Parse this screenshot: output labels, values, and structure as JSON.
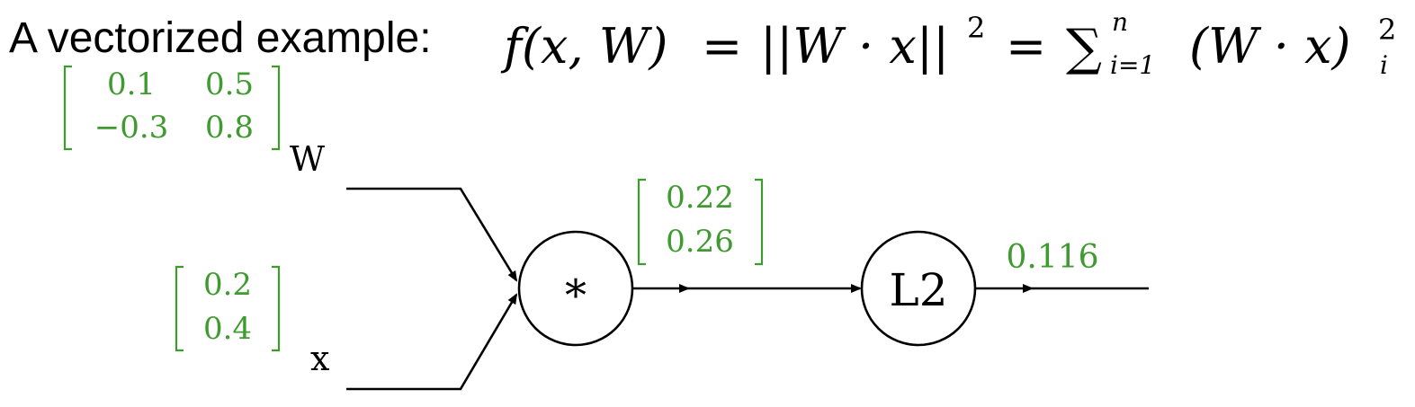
{
  "title": {
    "prefix": "A vectorized example:",
    "formula": {
      "lhs": "f(x, W)",
      "eq1": "=",
      "norm": "||W · x||",
      "norm_exp": "2",
      "eq2": "=",
      "sum_symbol": "∑",
      "sum_upper": "n",
      "sum_lower": "i=1",
      "summand": "(W · x)",
      "summand_sub": "i",
      "summand_exp": "2"
    }
  },
  "diagram": {
    "inputs": {
      "W": {
        "label": "W",
        "matrix": [
          [
            "0.1",
            "0.5"
          ],
          [
            "−0.3",
            "0.8"
          ]
        ]
      },
      "x": {
        "label": "x",
        "vector": [
          "0.2",
          "0.4"
        ]
      }
    },
    "nodes": {
      "multiply": {
        "symbol": "*"
      },
      "l2": {
        "symbol": "L2"
      }
    },
    "intermediate": {
      "vector": [
        "0.22",
        "0.26"
      ]
    },
    "output": {
      "value": "0.116"
    }
  },
  "colors": {
    "value_green": "#3f9a2f",
    "line_black": "#000000"
  }
}
